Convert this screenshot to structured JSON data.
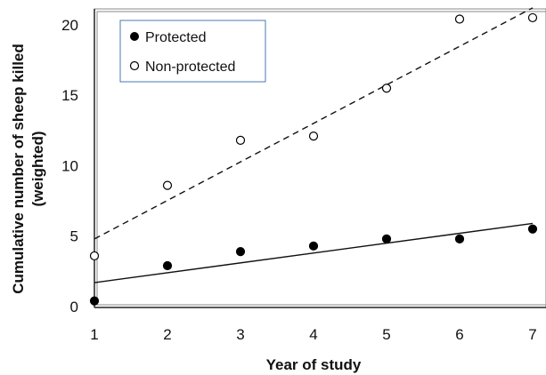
{
  "chart_data": {
    "type": "scatter",
    "title": "",
    "xlabel": "Year of study",
    "ylabel_line1": "Cumulative number of sheep killed",
    "ylabel_line2": "(weighted)",
    "xlim": [
      1,
      7
    ],
    "ylim": [
      0,
      21
    ],
    "xticks": [
      1,
      2,
      3,
      4,
      5,
      6,
      7
    ],
    "yticks": [
      0,
      5,
      10,
      15,
      20
    ],
    "grid": false,
    "legend_position": "top-left",
    "series": [
      {
        "name": "Protected",
        "marker": "filled-circle",
        "color": "#000000",
        "x": [
          1,
          2,
          3,
          4,
          5,
          6,
          7
        ],
        "y": [
          0.4,
          2.9,
          3.9,
          4.3,
          4.8,
          4.8,
          5.5
        ],
        "trendline": {
          "style": "solid",
          "from": [
            1,
            1.7
          ],
          "to": [
            7,
            5.9
          ]
        }
      },
      {
        "name": "Non-protected",
        "marker": "open-circle",
        "color": "#000000",
        "x": [
          1,
          2,
          3,
          4,
          5,
          6,
          7
        ],
        "y": [
          3.6,
          8.6,
          11.8,
          12.1,
          15.5,
          20.4,
          20.5
        ],
        "trendline": {
          "style": "dashed",
          "from": [
            1,
            4.8
          ],
          "to": [
            7,
            21.2
          ]
        }
      }
    ]
  }
}
